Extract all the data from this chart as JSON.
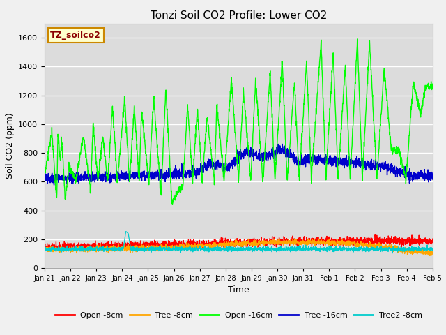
{
  "title": "Tonzi Soil CO2 Profile: Lower CO2",
  "ylabel": "Soil CO2 (ppm)",
  "xlabel": "Time",
  "legend_label": "TZ_soilco2",
  "ylim": [
    0,
    1700
  ],
  "yticks": [
    0,
    200,
    400,
    600,
    800,
    1000,
    1200,
    1400,
    1600
  ],
  "xtick_labels": [
    "Jan 21",
    "Jan 22",
    "Jan 23",
    "Jan 24",
    "Jan 25",
    "Jan 26",
    "Jan 27",
    "Jan 28",
    "Jan 29",
    "Jan 30",
    "Jan 31",
    "Feb 1",
    "Feb 2",
    "Feb 3",
    "Feb 4",
    "Feb 5"
  ],
  "series_colors": {
    "open8": "#ff0000",
    "tree8": "#ffa500",
    "open16": "#00ff00",
    "tree16": "#0000cc",
    "tree2_8": "#00cccc"
  },
  "legend_entries": [
    "Open -8cm",
    "Tree -8cm",
    "Open -16cm",
    "Tree -16cm",
    "Tree2 -8cm"
  ],
  "legend_colors": [
    "#ff0000",
    "#ffa500",
    "#00ff00",
    "#0000cc",
    "#00cccc"
  ],
  "plot_bg_color": "#dcdcdc",
  "fig_bg_color": "#f0f0f0",
  "title_fontsize": 11,
  "axis_fontsize": 9,
  "tick_fontsize": 8,
  "grid_color": "#ffffff",
  "open16_peaks": [
    0.3,
    0.55,
    0.7,
    1.0,
    1.6,
    2.0,
    2.4,
    2.8,
    3.3,
    3.7,
    4.0,
    4.5,
    5.0,
    5.5,
    5.9,
    6.3,
    6.7,
    7.1,
    7.7,
    8.2,
    8.7,
    9.3,
    9.8,
    10.3,
    10.8,
    11.4,
    11.9,
    12.4,
    12.9,
    13.4,
    14.0,
    14.6,
    15.2,
    15.7
  ],
  "open16_peak_vals": [
    950,
    940,
    900,
    700,
    920,
    1000,
    920,
    1120,
    1180,
    1120,
    1100,
    1190,
    1250,
    540,
    1140,
    1110,
    1050,
    1140,
    1310,
    1230,
    1310,
    1360,
    1450,
    1290,
    1430,
    1570,
    1500,
    1410,
    1590,
    1570,
    1390,
    820,
    1290,
    1260
  ],
  "open16_troughs": [
    0.5,
    0.65,
    0.85,
    1.3,
    1.9,
    2.2,
    2.6,
    3.0,
    3.5,
    3.9,
    4.3,
    4.8,
    5.25,
    5.7,
    6.1,
    6.5,
    7.0,
    7.4,
    8.0,
    8.5,
    9.0,
    9.5,
    10.0,
    10.5,
    11.0,
    11.6,
    12.1,
    12.6,
    13.1,
    13.7,
    14.3,
    14.9,
    15.5,
    16.0
  ],
  "open16_trough_vals": [
    470,
    730,
    470,
    615,
    540,
    610,
    600,
    600,
    600,
    600,
    600,
    500,
    450,
    560,
    600,
    600,
    600,
    600,
    610,
    610,
    600,
    600,
    600,
    620,
    620,
    620,
    620,
    620,
    620,
    620,
    810,
    620,
    1070,
    1260
  ]
}
